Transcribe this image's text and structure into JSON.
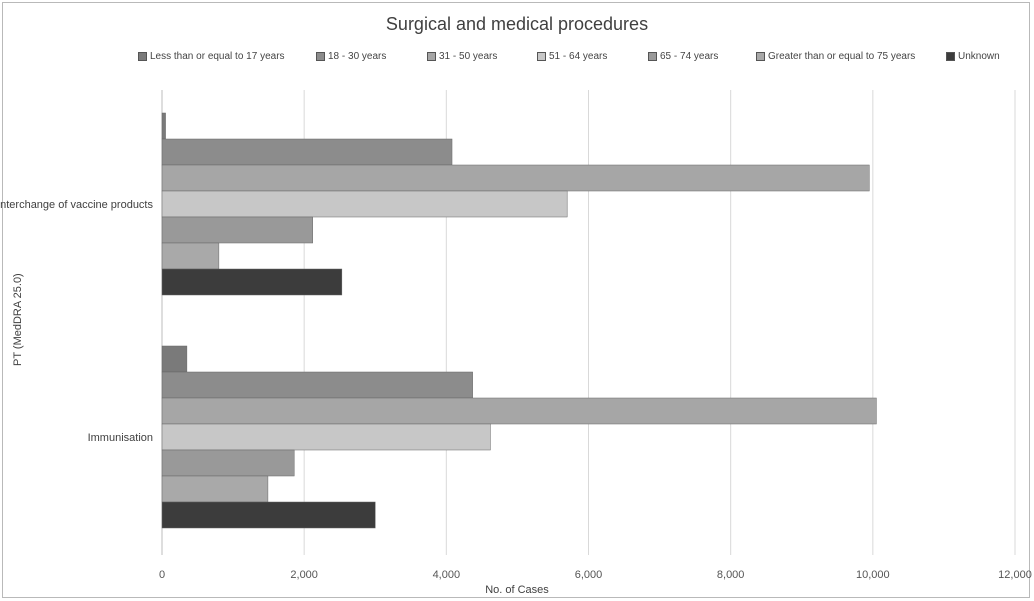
{
  "chart_data": {
    "type": "bar",
    "orientation": "horizontal",
    "title": "Surgical and medical procedures",
    "xlabel": "No. of Cases",
    "ylabel": "PT (MedDRA 25.0)",
    "xlim": [
      0,
      12000
    ],
    "x_ticks": [
      "0",
      "2,000",
      "4,000",
      "6,000",
      "8,000",
      "10,000",
      "12,000"
    ],
    "categories": [
      "Interchange of vaccine products",
      "Immunisation"
    ],
    "grid": "vertical",
    "legend_position": "top",
    "series": [
      {
        "name": "Less than or equal to 17 years",
        "values": [
          50,
          350
        ],
        "color": "#7a7a7a"
      },
      {
        "name": "18 - 30 years",
        "values": [
          4080,
          4370
        ],
        "color": "#8c8c8c"
      },
      {
        "name": "31 - 50 years",
        "values": [
          9950,
          10050
        ],
        "color": "#a6a6a6"
      },
      {
        "name": "51 - 64 years",
        "values": [
          5700,
          4620
        ],
        "color": "#c7c7c7"
      },
      {
        "name": "65 - 74 years",
        "values": [
          2120,
          1860
        ],
        "color": "#999999"
      },
      {
        "name": "Greater than or equal to 75 years",
        "values": [
          800,
          1490
        ],
        "color": "#a9a9a9"
      },
      {
        "name": "Unknown",
        "values": [
          2530,
          3000
        ],
        "color": "#3c3c3c"
      }
    ]
  }
}
